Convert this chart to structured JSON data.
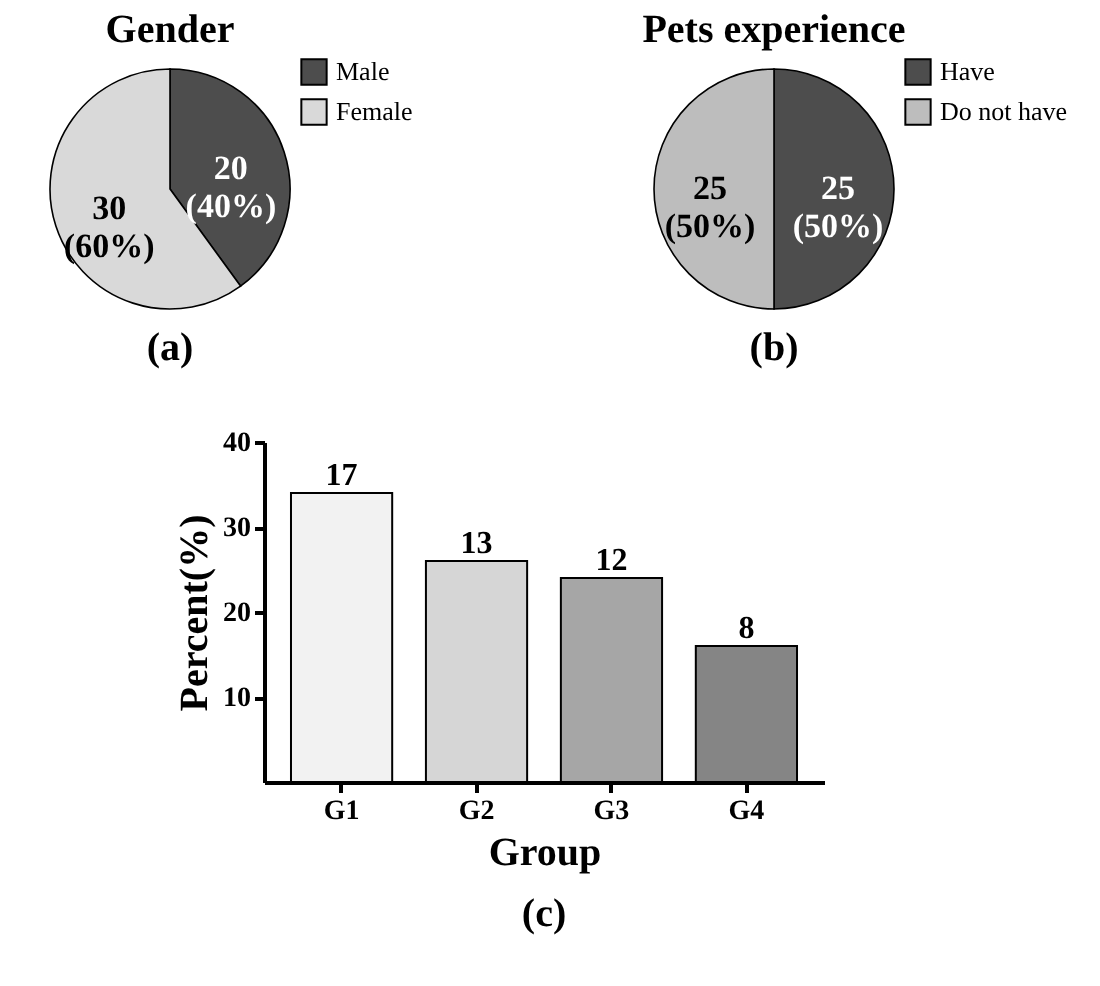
{
  "chart_data": [
    {
      "type": "pie",
      "title": "Gender",
      "categories": [
        "Male",
        "Female"
      ],
      "values": [
        20,
        30
      ],
      "colors": [
        "#4d4d4d",
        "#d9d9d9"
      ],
      "value_labels": [
        "20\n(40%)",
        "30\n(60%)"
      ],
      "legend": "top right",
      "annotations": [
        "(a)"
      ]
    },
    {
      "type": "pie",
      "title": "Pets experience",
      "categories": [
        "Have",
        "Do not have"
      ],
      "values": [
        25,
        25
      ],
      "colors": [
        "#4d4d4d",
        "#bdbdbd"
      ],
      "value_labels": [
        "25\n(50%)",
        "25\n(50%)"
      ],
      "legend": "top right",
      "annotations": [
        "(b)"
      ]
    },
    {
      "type": "bar",
      "categories": [
        "G1",
        "G2",
        "G3",
        "G4"
      ],
      "values": [
        34,
        26,
        24,
        16
      ],
      "colors": [
        "#f2f2f2",
        "#d6d6d6",
        "#a6a6a6",
        "#858585"
      ],
      "xlabel": "Group",
      "ylabel": "Percent(%)",
      "ylim": [
        0,
        40
      ],
      "yticks": [
        10,
        20,
        30,
        40
      ],
      "grid": false,
      "annotations": [
        "(c)",
        {
          "text": "17",
          "x": "G1",
          "y": 34
        },
        {
          "text": "13",
          "x": "G2",
          "y": 26
        },
        {
          "text": "12",
          "x": "G3",
          "y": 24
        },
        {
          "text": "8",
          "x": "G4",
          "y": 16
        }
      ]
    }
  ]
}
